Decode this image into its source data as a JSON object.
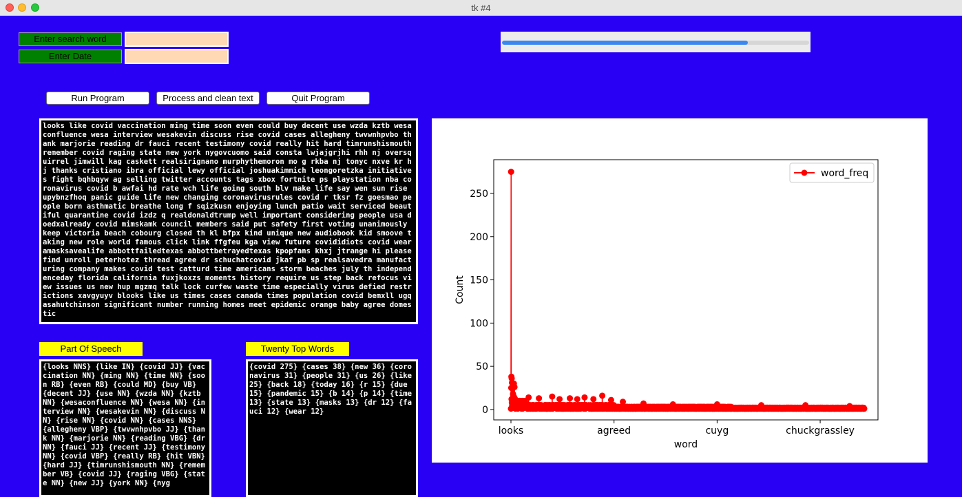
{
  "window": {
    "title": "tk #4"
  },
  "inputs": {
    "search_label": "Enter search word",
    "date_label": "Enter Date",
    "search_value": "",
    "date_value": ""
  },
  "progress": {
    "fraction": 0.8
  },
  "buttons": {
    "run": "Run Program",
    "process": "Process and clean text",
    "quit": "Quit Program"
  },
  "main_text": "looks like covid vaccination ming time soon even could buy decent use wzda kztb wesaconfluence wesa interview wesakevin discuss rise covid cases allegheny twvwnhpvbo thank marjorie reading dr fauci recent testimony covid really hit hard timrunshismouth remember covid raging state new york nygovcuomo said consta lwjajgrjhi rhh nj oversquirrel jimwill kag caskett realsirignano murphythemoron mo g rkba nj tonyc nxve kr hj thanks cristiano ibra official lewy official joshuakimmich leongoretzka initiatives fight bqhbqyw ag selling twitter accounts tags xbox fortnite ps playstation nba coronavirus covid b awfai hd rate wch life going south blv make life say wen sun rise upybnzfhoq panic guide life new changing coronavirusrules covid r tksr fz goesmao people born asthmatic breathe long f sqizkusn enjoying lunch patio wait serviced beautiful quarantine covid izdz q realdonaldtrump well important considering people usa doedxalready covid mimskamk council members said put safety first voting unanimously keep victoria beach cobourg closed th kl bfpx kind unique new audiobook kid smoove taking new role world famous click link ffgfeu kga view future covididiots covid wearamasksavealife abbottfailedtexas abbottbetrayedtexas kpopfans khxj jtrange hi please find unroll peterhotez thread agree dr schuchatcovid jkaf pb sp realsavedra manufacturing company makes covid test catturd time americans storm beaches july th independenceday florida california fuxjkoxzs moments history require us step back refocus view issues us new hup mgzmq talk lock curfew waste time especially virus defied restrictions xavgyuyv blooks like us times cases canada times population covid bemxll ugq asahutchinson significant number running homes meet epidemic orange baby agree domestic",
  "pos_label": "Part Of Speech",
  "pos_text": "{looks NNS} {like IN} {covid JJ} {vaccination NN} {ming NN} {time NN} {soon RB} {even RB} {could MD} {buy VB} {decent JJ} {use NN} {wzda NN} {kztb NN} {wesaconfluence NN} {wesa NN} {interview NN} {wesakevin NN} {discuss NN} {rise NN} {covid NN} {cases NNS} {allegheny VBP} {twvwnhpvbo JJ} {thank NN} {marjorie NN} {reading VBG} {dr NN} {fauci JJ} {recent JJ} {testimony NN} {covid VBP} {really RB} {hit VBN} {hard JJ} {timrunshismouth NN} {remember VB} {covid JJ} {raging VBG} {state NN} {new JJ} {york NN} {nyg",
  "top_label": "Twenty Top Words",
  "top_text": "{covid 275} {cases 38} {new 36} {coronavirus 31} {people 31} {us 26} {like 25} {back 18} {today 16} {r 15} {due 15} {pandemic 15} {b 14} {p 14} {time 13} {state 13} {masks 13} {dr 12} {fauci 12} {wear 12}",
  "chart_data": {
    "type": "line",
    "xlabel": "word",
    "ylabel": "Count",
    "legend": "word_freq",
    "legend_position": "top-right",
    "x_tick_labels": [
      "looks",
      "agreed",
      "cuyg",
      "chuckgrassley"
    ],
    "x_tick_indices": [
      0,
      700,
      1400,
      2100
    ],
    "n_points": 2400,
    "ylim": [
      -12,
      289
    ],
    "y_ticks": [
      0,
      50,
      100,
      150,
      200,
      250
    ],
    "color": "#ff0000",
    "values_head": [
      1,
      275,
      25,
      38,
      12,
      36,
      8,
      31,
      5,
      31,
      10,
      26,
      4,
      25,
      18,
      6,
      16,
      15,
      3,
      15,
      30,
      14,
      7,
      13,
      26,
      13,
      2,
      12,
      12,
      5
    ],
    "peaks": [
      {
        "x": 120,
        "y": 14
      },
      {
        "x": 190,
        "y": 13
      },
      {
        "x": 280,
        "y": 15
      },
      {
        "x": 330,
        "y": 12
      },
      {
        "x": 400,
        "y": 13
      },
      {
        "x": 450,
        "y": 12
      },
      {
        "x": 500,
        "y": 14
      },
      {
        "x": 560,
        "y": 12
      },
      {
        "x": 620,
        "y": 16
      },
      {
        "x": 680,
        "y": 11
      },
      {
        "x": 760,
        "y": 9
      },
      {
        "x": 900,
        "y": 7
      },
      {
        "x": 1100,
        "y": 6
      },
      {
        "x": 1400,
        "y": 6
      },
      {
        "x": 1700,
        "y": 5
      },
      {
        "x": 2000,
        "y": 5
      },
      {
        "x": 2300,
        "y": 4
      }
    ]
  }
}
